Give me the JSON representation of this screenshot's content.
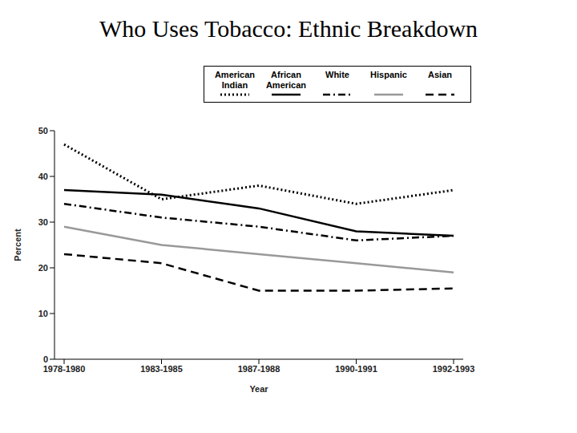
{
  "chart_data": {
    "type": "line",
    "title": "Who Uses Tobacco: Ethnic Breakdown",
    "x_label": "Year",
    "y_label": "Percent",
    "categories": [
      "1978-1980",
      "1983-1985",
      "1987-1988",
      "1990-1991",
      "1992-1993"
    ],
    "series": [
      {
        "name": "American Indian",
        "color": "#000000",
        "line_style": "dotted",
        "values": [
          47,
          35,
          38,
          34,
          37
        ]
      },
      {
        "name": "African American",
        "color": "#000000",
        "line_style": "solid",
        "values": [
          37,
          36,
          33,
          28,
          27
        ]
      },
      {
        "name": "White",
        "color": "#000000",
        "line_style": "dashdot",
        "values": [
          34,
          31,
          29,
          26,
          27
        ]
      },
      {
        "name": "Hispanic",
        "color": "#999999",
        "line_style": "solid",
        "values": [
          29,
          25,
          23,
          21,
          19
        ]
      },
      {
        "name": "Asian",
        "color": "#000000",
        "line_style": "dashed",
        "values": [
          23,
          21,
          15,
          15,
          15.5
        ]
      }
    ],
    "ylim": [
      0,
      50
    ],
    "yticks": [
      0,
      10,
      20,
      30,
      40,
      50
    ],
    "grid": false,
    "legend": "top-right",
    "marker": "none"
  }
}
